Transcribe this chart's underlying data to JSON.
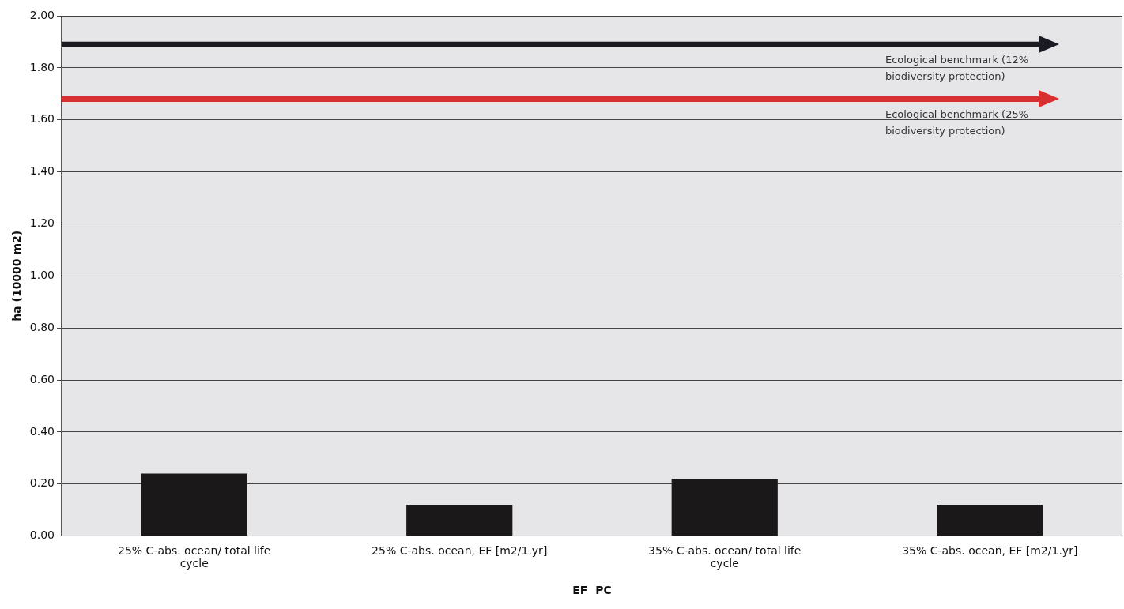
{
  "chart_data": {
    "type": "bar",
    "xlabel": "EF  PC",
    "ylabel": "ha (10000 m2)",
    "categories": [
      "25% C-abs. ocean/ total life cycle",
      "25% C-abs. ocean, EF [m2/1.yr]",
      "35% C-abs. ocean/ total life cycle",
      "35% C-abs. ocean, EF [m2/1.yr]"
    ],
    "values": [
      0.24,
      0.12,
      0.22,
      0.12
    ],
    "color": "#1a1818",
    "ylim": [
      0,
      2
    ],
    "yticks": [
      {
        "value": 0,
        "label": "0.00"
      },
      {
        "value": 0.2,
        "label": "0.20"
      },
      {
        "value": 0.4,
        "label": "0.40"
      },
      {
        "value": 0.6,
        "label": "0.60"
      },
      {
        "value": 0.8,
        "label": "0.80"
      },
      {
        "value": 1,
        "label": "1.00"
      },
      {
        "value": 1.2,
        "label": "1.20"
      },
      {
        "value": 1.4,
        "label": "1.40"
      },
      {
        "value": 1.6,
        "label": "1.60"
      },
      {
        "value": 1.8,
        "label": "1.80"
      },
      {
        "value": 2,
        "label": "2.00"
      }
    ],
    "grid": "y",
    "legend": false,
    "ref_lines": [
      {
        "axis": "y",
        "value": 1.89,
        "label": "Ecological benchmark (12% biodiversity protection)",
        "color": "#1a1a22"
      },
      {
        "axis": "y",
        "value": 1.68,
        "label": "Ecological benchmark (25% biodiversity protection)",
        "color": "#d83030"
      }
    ]
  }
}
